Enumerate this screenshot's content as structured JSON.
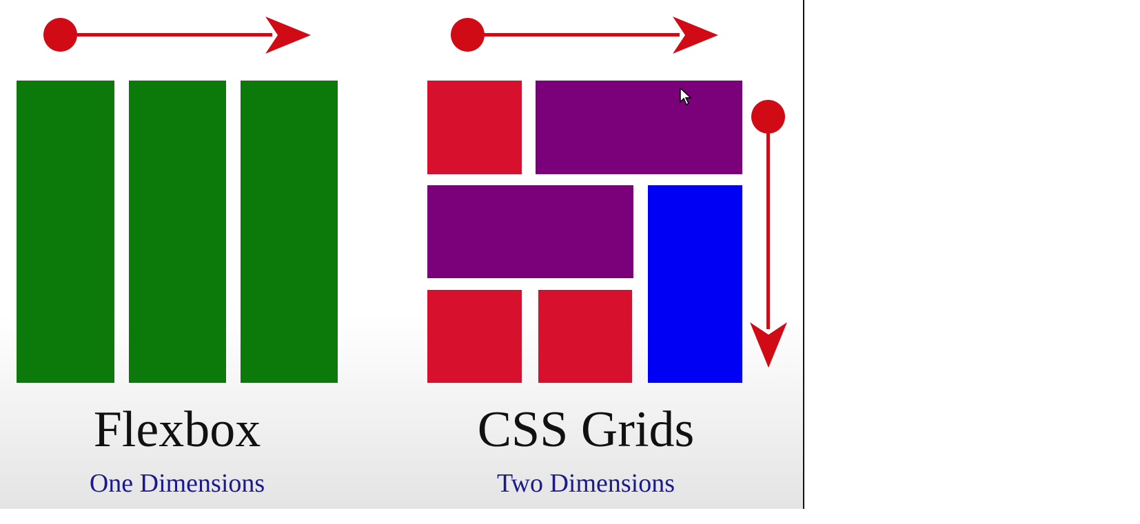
{
  "flexbox": {
    "title": "Flexbox",
    "subtitle": "One Dimensions",
    "items": [
      "item-1",
      "item-2",
      "item-3"
    ]
  },
  "grid": {
    "title": "CSS Grids",
    "subtitle": "Two Dimensions"
  },
  "colors": {
    "green": "#0b7a0b",
    "red": "#d7102e",
    "purple": "#7b017b",
    "blue": "#0000f5",
    "arrow": "#d10b16",
    "subtitle": "#1a1a8c"
  }
}
